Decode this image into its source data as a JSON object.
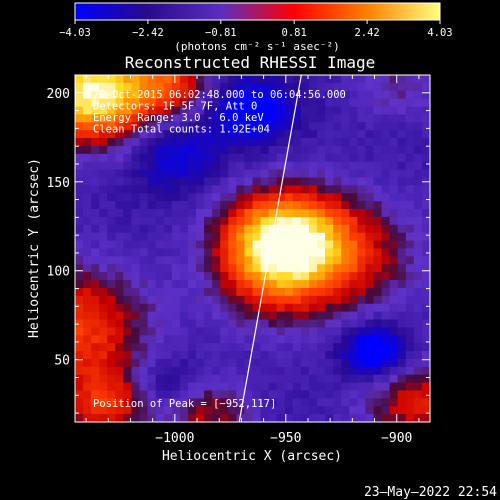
{
  "chart_data": {
    "type": "heatmap",
    "title": "Reconstructed RHESSI Image",
    "xlabel": "Heliocentric X (arcsec)",
    "ylabel": "Heliocentric Y (arcsec)",
    "xlim": [
      -1045,
      -885
    ],
    "ylim": [
      15,
      210
    ],
    "x_ticks": [
      -1000,
      -950,
      -900
    ],
    "x_tick_labels": [
      "−1000",
      "−950",
      "−900"
    ],
    "y_ticks": [
      50,
      100,
      150,
      200
    ],
    "y_tick_labels": [
      "50",
      "100",
      "150",
      "200"
    ],
    "colorbar": {
      "min": -4.03,
      "max": 4.03,
      "ticks": [
        -4.03,
        -2.42,
        -0.81,
        0.81,
        2.42,
        4.03
      ],
      "tick_labels": [
        "−4.03",
        "−2.42",
        "−0.81",
        "0.81",
        "2.42",
        "4.03"
      ],
      "unit_label": "(photons cm⁻² s⁻¹ asec⁻²)",
      "colors": [
        "#0000ff",
        "#2a0a8a",
        "#5a2ec0",
        "#ff0000",
        "#ff8000",
        "#ffff80"
      ]
    },
    "info_lines": [
      "29-Oct-2015 06:02:48.000 to 06:04:56.000",
      "Detectors: 1F 5F 7F, Att 0",
      "Energy Range: 3.0 - 6.0 keV",
      "Clean    Total counts: 1.92E+04"
    ],
    "peak_label": "Position of Peak = [−952,117]",
    "peak": {
      "x": -952,
      "y": 117,
      "value": 4.03
    },
    "sources": [
      {
        "x": -952,
        "y": 117,
        "sigma": 20,
        "amp": 5.6
      },
      {
        "x": -922,
        "y": 108,
        "sigma": 24,
        "amp": 2.3
      },
      {
        "x": -958,
        "y": 88,
        "sigma": 18,
        "amp": 1.4
      },
      {
        "x": -1036,
        "y": 200,
        "sigma": 20,
        "amp": 6.0
      },
      {
        "x": -1000,
        "y": 205,
        "sigma": 12,
        "amp": 2.4
      },
      {
        "x": -1045,
        "y": 70,
        "sigma": 24,
        "amp": 3.2
      },
      {
        "x": -1030,
        "y": 25,
        "sigma": 16,
        "amp": 2.8
      },
      {
        "x": -985,
        "y": 20,
        "sigma": 14,
        "amp": 2.2
      },
      {
        "x": -890,
        "y": 25,
        "sigma": 18,
        "amp": 2.6
      },
      {
        "x": -900,
        "y": 205,
        "sigma": 14,
        "amp": 1.3
      },
      {
        "x": -965,
        "y": 190,
        "sigma": 12,
        "amp": -2.8
      },
      {
        "x": -1000,
        "y": 165,
        "sigma": 14,
        "amp": -1.8
      },
      {
        "x": -910,
        "y": 55,
        "sigma": 10,
        "amp": -3.3
      },
      {
        "x": -1005,
        "y": 35,
        "sigma": 12,
        "amp": -1.5
      }
    ],
    "background": -1.9,
    "limb": [
      [
        -971,
        15
      ],
      [
        -943,
        210
      ]
    ]
  },
  "footer": {
    "date": "23–May–2022 22:54"
  }
}
